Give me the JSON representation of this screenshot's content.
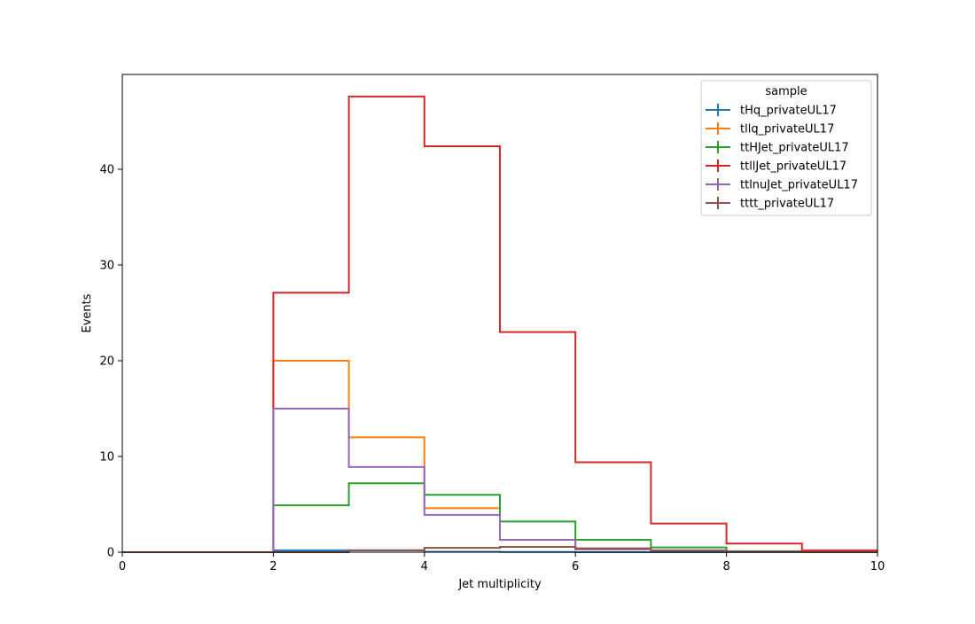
{
  "chart_data": {
    "type": "line",
    "drawstyle": "steps",
    "xlabel": "Jet multiplicity",
    "ylabel": "Events",
    "xlim": [
      0,
      10
    ],
    "ylim": [
      0,
      49.9
    ],
    "x_ticks": [
      0,
      2,
      4,
      6,
      8,
      10
    ],
    "y_ticks": [
      0,
      10,
      20,
      30,
      40
    ],
    "x_tick_labels": [
      "0",
      "2",
      "4",
      "6",
      "8",
      "10"
    ],
    "y_tick_labels": [
      "0",
      "10",
      "20",
      "30",
      "40"
    ],
    "bin_edges": [
      0,
      1,
      2,
      3,
      4,
      5,
      6,
      7,
      8,
      9,
      10
    ],
    "grid": false,
    "legend": {
      "title": "sample",
      "placement": "upper right"
    },
    "series": [
      {
        "name": "tHq_privateUL17",
        "color": "#1f77b4",
        "values": [
          0,
          0,
          0.2,
          0.2,
          0.05,
          0.02,
          0,
          0,
          0,
          0
        ]
      },
      {
        "name": "tllq_privateUL17",
        "color": "#ff7f0e",
        "values": [
          0,
          0,
          20.0,
          12.0,
          4.6,
          1.3,
          0.3,
          0.1,
          0,
          0
        ]
      },
      {
        "name": "ttHJet_privateUL17",
        "color": "#2ca02c",
        "values": [
          0,
          0,
          4.9,
          7.2,
          6.0,
          3.2,
          1.3,
          0.5,
          0.1,
          0
        ]
      },
      {
        "name": "ttllJet_privateUL17",
        "color": "#d62728",
        "values": [
          0,
          0,
          27.1,
          47.6,
          42.4,
          23.0,
          9.4,
          3.0,
          0.9,
          0.2
        ]
      },
      {
        "name": "ttlnuJet_privateUL17",
        "color": "#9467bd",
        "values": [
          0,
          0,
          15.0,
          8.9,
          3.9,
          1.3,
          0.3,
          0.1,
          0,
          0
        ]
      },
      {
        "name": "tttt_privateUL17",
        "color": "#8c564b",
        "values": [
          0,
          0,
          0.0,
          0.2,
          0.45,
          0.55,
          0.4,
          0.2,
          0.05,
          0
        ]
      }
    ]
  }
}
